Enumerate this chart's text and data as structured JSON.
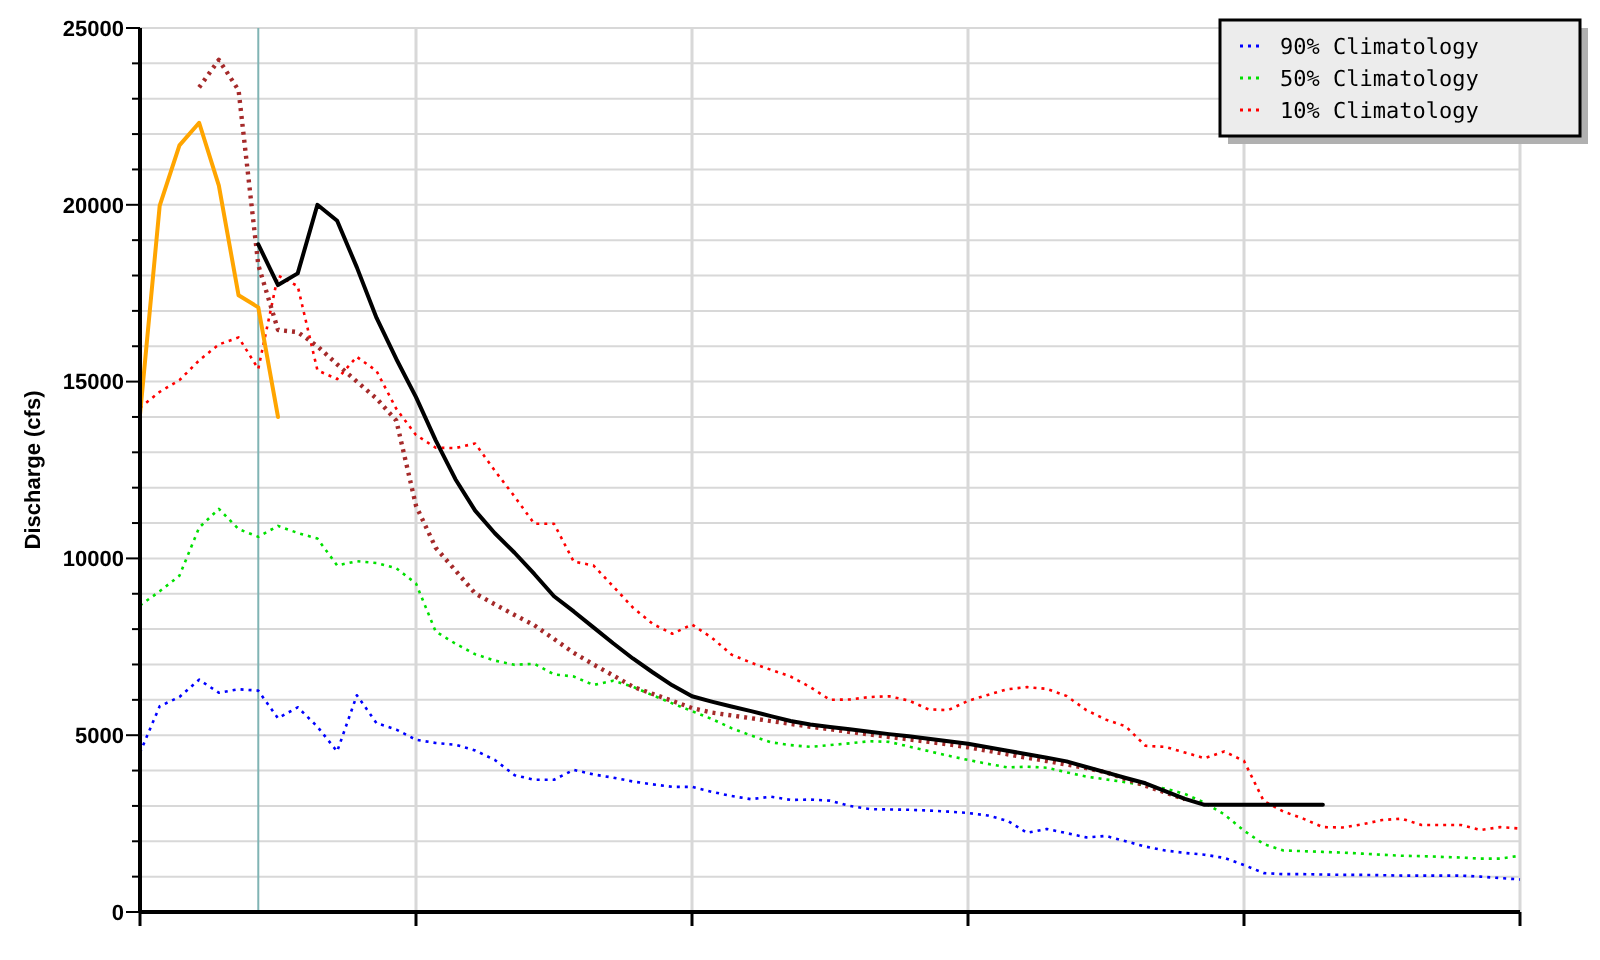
{
  "chart_data": {
    "type": "line",
    "ylabel": "Discharge (cfs)",
    "categories": [
      null,
      null,
      null,
      null,
      null,
      null,
      null,
      null,
      null,
      null,
      null,
      null,
      null,
      null,
      null,
      null,
      null,
      null,
      null,
      null,
      null,
      null,
      null,
      null,
      null,
      null,
      null,
      null,
      null,
      null,
      null,
      null,
      null,
      null,
      null,
      null,
      null,
      null,
      null,
      null,
      null,
      null,
      null,
      null,
      null,
      null,
      null,
      null,
      null,
      null,
      null,
      null,
      null,
      null,
      null,
      null,
      null,
      null,
      null,
      null,
      null,
      null,
      null,
      null,
      null,
      null,
      null,
      null,
      null,
      null,
      null
    ],
    "ylim": [
      0,
      25000
    ],
    "yticks": [
      0,
      {
        "value": 1000,
        "label": null
      },
      {
        "value": 2000,
        "label": null
      },
      {
        "value": 3000,
        "label": null
      },
      {
        "value": 4000,
        "label": null
      },
      5000,
      {
        "value": 6000,
        "label": null
      },
      {
        "value": 7000,
        "label": null
      },
      {
        "value": 8000,
        "label": null
      },
      {
        "value": 9000,
        "label": null
      },
      10000,
      {
        "value": 11000,
        "label": null
      },
      {
        "value": 12000,
        "label": null
      },
      {
        "value": 13000,
        "label": null
      },
      {
        "value": 14000,
        "label": null
      },
      15000,
      {
        "value": 16000,
        "label": null
      },
      {
        "value": 17000,
        "label": null
      },
      {
        "value": 18000,
        "label": null
      },
      {
        "value": 19000,
        "label": null
      },
      20000,
      {
        "value": 21000,
        "label": null
      },
      {
        "value": 22000,
        "label": null
      },
      {
        "value": 23000,
        "label": null
      },
      {
        "value": 24000,
        "label": null
      },
      25000
    ],
    "grid": true,
    "legend": "top right",
    "marker": "none",
    "series": [
      {
        "name": "90% Climatology",
        "color": "#0000ff",
        "line_style": "dotted",
        "values": [
          4510,
          5820,
          6080,
          6570,
          6200,
          6300,
          6260,
          5480,
          5790,
          5240,
          4540,
          6130,
          5340,
          5160,
          4870,
          4780,
          4730,
          4570,
          4300,
          3870,
          3740,
          3740,
          4020,
          3890,
          3800,
          3690,
          3610,
          3540,
          3540,
          3400,
          3280,
          3190,
          3260,
          3170,
          3180,
          3150,
          3000,
          2910,
          2900,
          2890,
          2870,
          2840,
          2800,
          2730,
          2580,
          2240,
          2350,
          2230,
          2110,
          2150,
          2000,
          1850,
          1740,
          1670,
          1620,
          1530,
          1330,
          1100,
          1070,
          1070,
          1060,
          1050,
          1050,
          1040,
          1030,
          1030,
          1030,
          1030,
          1000,
          960,
          920
        ]
      },
      {
        "name": "50% Climatology",
        "color": "#00e000",
        "line_style": "dotted",
        "values": [
          8670,
          9070,
          9510,
          10870,
          11400,
          10830,
          10610,
          10920,
          10720,
          10560,
          9800,
          9920,
          9870,
          9720,
          9290,
          7930,
          7590,
          7290,
          7110,
          6990,
          7020,
          6720,
          6660,
          6420,
          6540,
          6370,
          6130,
          5900,
          5680,
          5460,
          5200,
          4990,
          4800,
          4720,
          4670,
          4720,
          4770,
          4830,
          4810,
          4680,
          4550,
          4420,
          4300,
          4190,
          4090,
          4110,
          4080,
          3950,
          3830,
          3750,
          3670,
          3580,
          3490,
          3340,
          3090,
          2760,
          2300,
          1920,
          1740,
          1720,
          1700,
          1680,
          1650,
          1620,
          1590,
          1580,
          1560,
          1540,
          1510,
          1510,
          1590
        ]
      },
      {
        "name": "10% Climatology",
        "color": "#ff0000",
        "line_style": "dotted",
        "values": [
          14260,
          14710,
          15040,
          15600,
          16050,
          16250,
          15360,
          18000,
          17700,
          15320,
          15070,
          15700,
          15300,
          14230,
          13490,
          13130,
          13120,
          13250,
          12480,
          11750,
          10980,
          10980,
          9910,
          9800,
          9210,
          8610,
          8150,
          7870,
          8130,
          7760,
          7280,
          7050,
          6850,
          6660,
          6360,
          6000,
          6010,
          6080,
          6100,
          5980,
          5730,
          5710,
          5970,
          6140,
          6300,
          6360,
          6310,
          6110,
          5710,
          5440,
          5250,
          4700,
          4670,
          4510,
          4350,
          4540,
          4270,
          3140,
          2840,
          2640,
          2400,
          2390,
          2480,
          2600,
          2640,
          2460,
          2460,
          2460,
          2320,
          2400,
          2360
        ]
      },
      {
        "color": "#a52a2a",
        "line_style": "dotted",
        "values": [
          null,
          null,
          null,
          23320,
          24100,
          23240,
          18300,
          16460,
          16400,
          16000,
          15490,
          15000,
          14520,
          13900,
          11490,
          10300,
          9660,
          9010,
          8700,
          8400,
          8110,
          7720,
          7330,
          7000,
          6690,
          6370,
          6170,
          5970,
          5770,
          5640,
          5560,
          5480,
          5400,
          5320,
          5240,
          5170,
          5090,
          5020,
          4950,
          4880,
          4810,
          4740,
          4660,
          4560,
          4460,
          4360,
          4270,
          4170,
          4070,
          3950,
          3760,
          3570,
          3380,
          3190,
          null,
          null,
          null,
          null,
          null,
          null,
          null,
          null,
          null,
          null,
          null,
          null,
          null,
          null,
          null,
          null,
          null
        ]
      },
      {
        "color": "#ffa500",
        "line_style": "solid",
        "values": [
          14060,
          19980,
          21680,
          22320,
          20540,
          17440,
          17100,
          14000,
          null,
          null,
          null,
          null,
          null,
          null,
          null,
          null,
          null,
          null,
          null,
          null,
          null,
          null,
          null,
          null,
          null,
          null,
          null,
          null,
          null,
          null,
          null,
          null,
          null,
          null,
          null,
          null,
          null,
          null,
          null,
          null,
          null,
          null,
          null,
          null,
          null,
          null,
          null,
          null,
          null,
          null,
          null,
          null,
          null,
          null,
          null,
          null,
          null,
          null,
          null,
          null,
          null,
          null,
          null,
          null,
          null,
          null,
          null,
          null,
          null,
          null,
          null
        ]
      },
      {
        "color": "#000000",
        "line_style": "solid",
        "values": [
          null,
          null,
          null,
          null,
          null,
          null,
          18880,
          17730,
          18060,
          20000,
          19550,
          18230,
          16800,
          15640,
          14560,
          13340,
          12240,
          11350,
          10710,
          10160,
          9560,
          8930,
          8500,
          8050,
          7600,
          7170,
          6780,
          6410,
          6100,
          5950,
          5810,
          5680,
          5540,
          5400,
          5300,
          5230,
          5170,
          5100,
          5030,
          4970,
          4900,
          4830,
          4760,
          4660,
          4560,
          4460,
          4360,
          4260,
          4100,
          3950,
          3790,
          3640,
          3420,
          3200,
          3030,
          3030,
          3030,
          3030,
          3030,
          3030,
          3030,
          null,
          null,
          null,
          null,
          null,
          null,
          null,
          null,
          null,
          null
        ]
      }
    ]
  }
}
